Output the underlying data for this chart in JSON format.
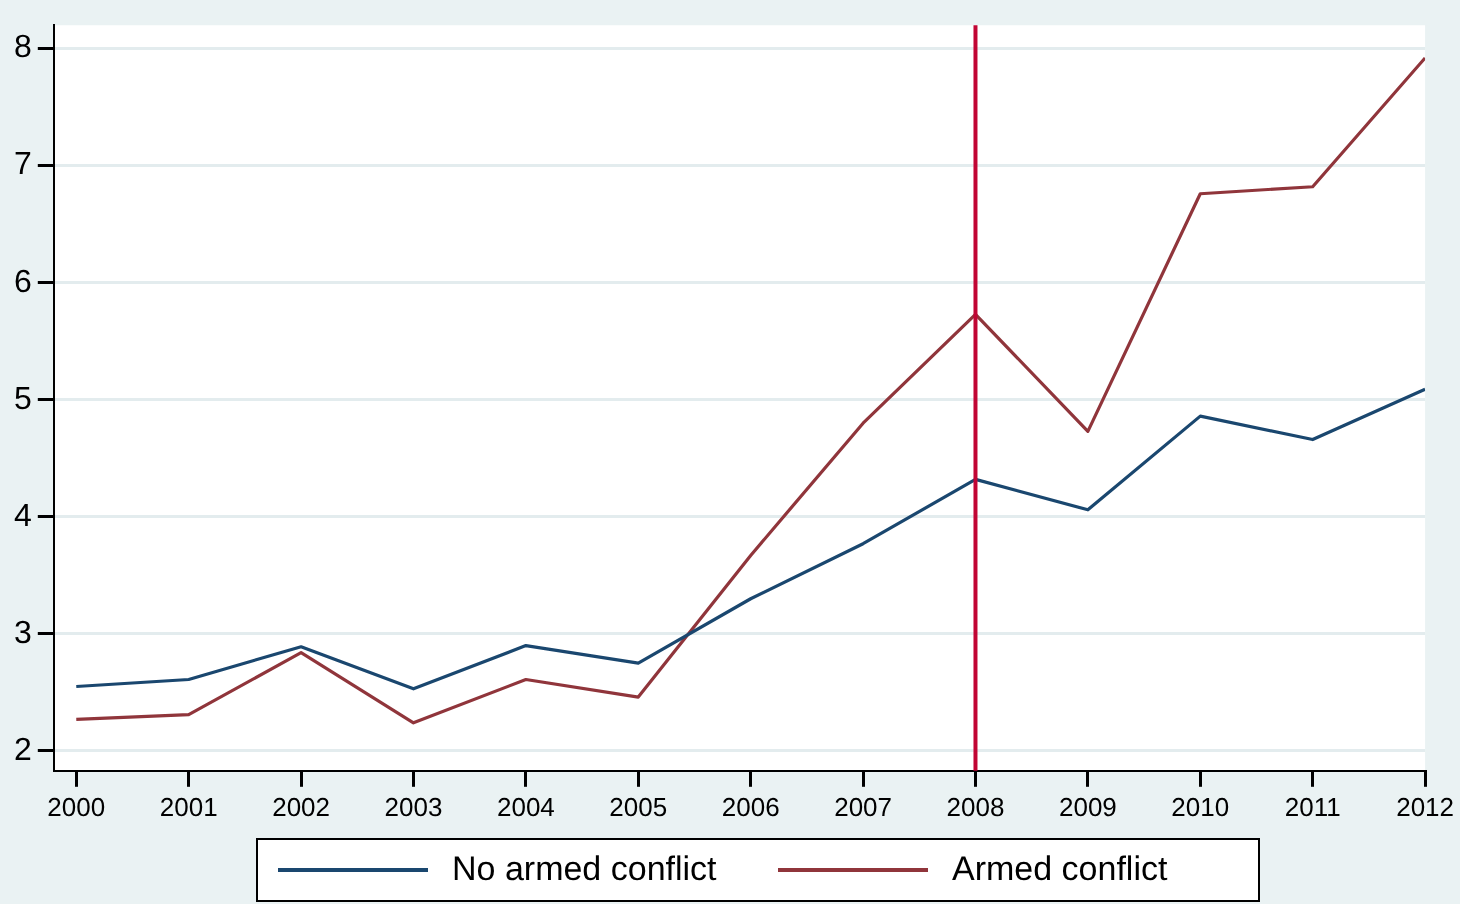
{
  "chart_data": {
    "type": "line",
    "x": [
      2000,
      2001,
      2002,
      2003,
      2004,
      2005,
      2006,
      2007,
      2008,
      2009,
      2010,
      2011,
      2012
    ],
    "series": [
      {
        "name": "No armed conflict",
        "color": "#1a476f",
        "values": [
          2.55,
          2.61,
          2.89,
          2.53,
          2.9,
          2.75,
          3.3,
          3.77,
          4.32,
          4.06,
          4.86,
          4.66,
          5.09
        ]
      },
      {
        "name": "Armed conflict",
        "color": "#90353b",
        "values": [
          2.27,
          2.31,
          2.84,
          2.24,
          2.61,
          2.46,
          3.67,
          4.8,
          5.73,
          4.73,
          6.76,
          6.82,
          7.92
        ]
      }
    ],
    "xlim": [
      1999.8,
      2012
    ],
    "xticks": [
      2000,
      2001,
      2002,
      2003,
      2004,
      2005,
      2006,
      2007,
      2008,
      2009,
      2010,
      2011,
      2012
    ],
    "ylim": [
      1.83,
      8.2
    ],
    "yticks": [
      2,
      3,
      4,
      5,
      6,
      7,
      8
    ],
    "ref_lines": [
      {
        "axis": "x",
        "value": 2008,
        "color": "#c10534"
      }
    ],
    "grid": "y",
    "legend": "bottom",
    "marker": "none",
    "line_style": "solid"
  }
}
